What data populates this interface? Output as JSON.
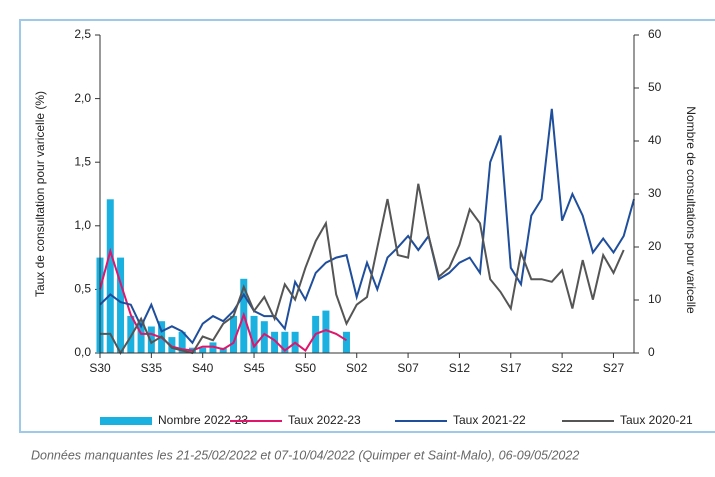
{
  "chart_data": {
    "type": "combo",
    "y_label": "Taux de consultation pour varicelle (%)",
    "y2_label": "Nombre de consultations pour varicelle",
    "footnote": "Données manquantes les 21-25/02/2022 et 07-10/04/2022 (Quimper et Saint-Malo), 06-09/05/2022",
    "categories": [
      "S30",
      null,
      null,
      null,
      null,
      "S35",
      null,
      null,
      null,
      null,
      "S40",
      null,
      null,
      null,
      null,
      "S45",
      null,
      null,
      null,
      null,
      "S50",
      null,
      null,
      null,
      null,
      "S02",
      null,
      null,
      null,
      null,
      "S07",
      null,
      null,
      null,
      null,
      "S12",
      null,
      null,
      null,
      null,
      "S17",
      null,
      null,
      null,
      null,
      "S22",
      null,
      null,
      null,
      null,
      "S27",
      null,
      null
    ],
    "ylim": [
      0,
      2.5
    ],
    "yticks": [
      {
        "value": 0,
        "label": "0,0"
      },
      {
        "value": 0.5,
        "label": "0,5"
      },
      {
        "value": 1,
        "label": "1,0"
      },
      {
        "value": 1.5,
        "label": "1,5"
      },
      {
        "value": 2,
        "label": "2,0"
      },
      {
        "value": 2.5,
        "label": "2,5"
      }
    ],
    "y2lim": [
      0,
      60
    ],
    "y2ticks": [
      0,
      10,
      20,
      30,
      40,
      50,
      60
    ],
    "series": [
      {
        "name": "Nombre 2022-23",
        "type": "bar",
        "axis": "y2",
        "color": "#1ab0e0",
        "values": [
          18,
          29,
          18,
          7,
          6,
          5,
          6,
          3,
          4,
          1,
          1,
          2,
          1,
          7,
          14,
          7,
          6,
          4,
          4,
          4,
          null,
          7,
          8,
          null,
          4,
          null,
          null,
          null,
          null,
          null,
          null,
          null,
          null,
          null,
          null,
          null,
          null,
          null,
          null,
          null,
          null,
          null,
          null,
          null,
          null,
          null,
          null,
          null,
          null,
          null,
          null,
          null,
          null
        ]
      },
      {
        "name": "Taux 2022-23",
        "type": "line",
        "color": "#e0156b",
        "values": [
          0.5,
          0.8,
          0.55,
          0.3,
          0.15,
          0.15,
          0.12,
          0.05,
          0.03,
          0.02,
          0.05,
          0.05,
          0.03,
          0.08,
          0.3,
          0.05,
          0.15,
          0.1,
          0.02,
          0.08,
          0.02,
          0.15,
          0.18,
          0.15,
          0.1,
          null,
          null,
          null,
          null,
          null,
          null,
          null,
          null,
          null,
          null,
          null,
          null,
          null,
          null,
          null,
          null,
          null,
          null,
          null,
          null,
          null,
          null,
          null,
          null,
          null,
          null,
          null,
          null
        ]
      },
      {
        "name": "Taux 2021-22",
        "type": "line",
        "color": "#1f4e9c",
        "values": [
          0.38,
          0.46,
          0.4,
          0.38,
          0.21,
          0.38,
          0.17,
          0.21,
          0.17,
          0.08,
          0.23,
          0.29,
          0.25,
          0.33,
          0.46,
          0.33,
          0.29,
          0.29,
          0.19,
          0.56,
          0.42,
          0.63,
          0.71,
          0.75,
          0.77,
          0.44,
          0.71,
          0.5,
          0.75,
          0.83,
          0.92,
          0.81,
          0.92,
          0.58,
          0.63,
          0.71,
          0.75,
          0.63,
          1.5,
          1.71,
          0.67,
          0.54,
          1.08,
          1.21,
          1.92,
          1.04,
          1.25,
          1.08,
          0.79,
          0.9,
          0.79,
          0.92,
          1.21
        ]
      },
      {
        "name": "Taux 2020-21",
        "type": "line",
        "color": "#555555",
        "values": [
          0.15,
          0.15,
          0,
          0.13,
          0.27,
          0.08,
          0.13,
          0.04,
          0.02,
          0,
          0.13,
          0.1,
          0.23,
          0.29,
          0.52,
          0.33,
          0.44,
          0.27,
          0.54,
          0.42,
          0.67,
          0.88,
          1.02,
          0.46,
          0.23,
          0.38,
          0.44,
          0.83,
          1.21,
          0.77,
          0.75,
          1.33,
          0.92,
          0.6,
          0.67,
          0.85,
          1.13,
          1.02,
          0.58,
          0.48,
          0.35,
          0.79,
          0.58,
          0.58,
          0.56,
          0.65,
          0.35,
          0.73,
          0.42,
          0.77,
          0.63,
          0.81,
          null
        ]
      }
    ]
  }
}
